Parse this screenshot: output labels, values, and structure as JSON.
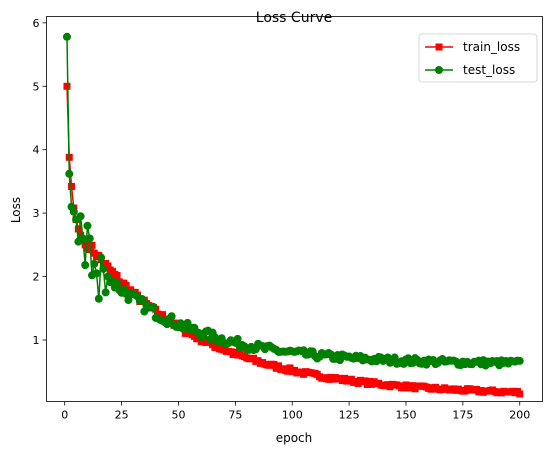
{
  "chart_data": {
    "type": "line",
    "title": "Loss Curve",
    "xlabel": "epoch",
    "ylabel": "Loss",
    "xlim": [
      -8,
      210
    ],
    "ylim": [
      0.03,
      6.1
    ],
    "xticks": [
      0,
      25,
      50,
      75,
      100,
      125,
      150,
      175,
      200
    ],
    "yticks": [
      1,
      2,
      3,
      4,
      5,
      6
    ],
    "grid": false,
    "legend_position": "top-right",
    "series": [
      {
        "name": "train_loss",
        "color": "#ff0000",
        "marker": "square",
        "head": [
          5.0,
          3.88,
          3.42,
          3.08,
          2.9,
          2.75,
          2.65,
          2.58,
          2.5,
          2.45
        ],
        "model": {
          "a": 2.95,
          "tau": 50,
          "c": 0.12
        },
        "epochs": [
          1,
          200
        ]
      },
      {
        "name": "test_loss",
        "color": "#008000",
        "marker": "circle",
        "head": [
          5.78,
          3.62,
          3.1,
          3.02,
          2.9,
          2.55,
          2.95,
          2.6,
          2.18,
          2.8,
          2.6,
          2.02,
          2.2,
          2.05,
          1.65,
          2.3,
          2.12,
          1.75,
          2.0
        ],
        "model": {
          "a": 2.2,
          "tau": 40,
          "c": 0.62
        },
        "epochs": [
          1,
          200
        ]
      }
    ]
  }
}
